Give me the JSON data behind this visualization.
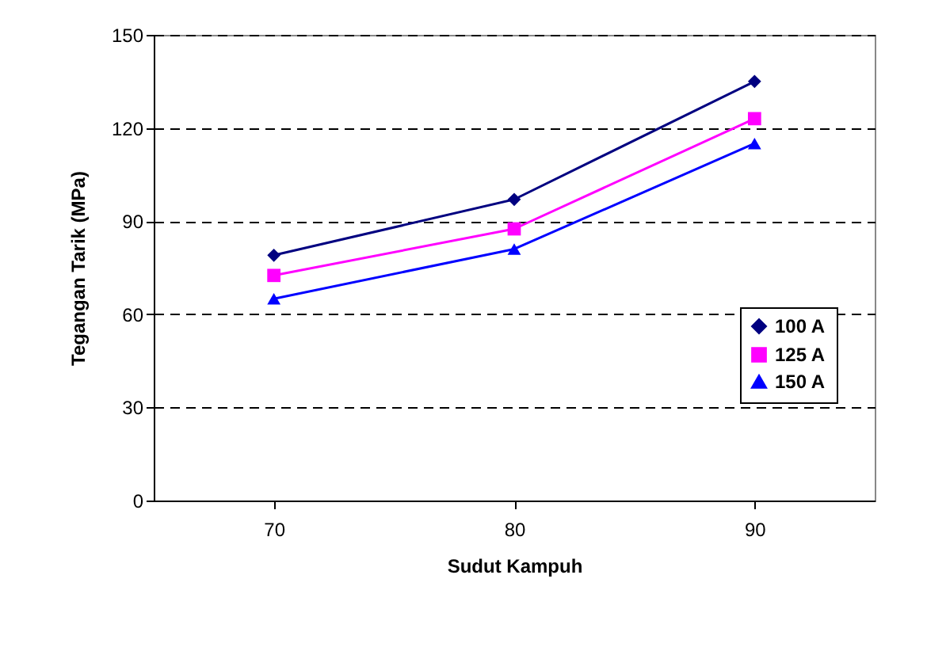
{
  "chart_data": {
    "type": "line",
    "xlabel": "Sudut Kampuh",
    "ylabel": "Tegangan Tarik (MPa)",
    "categories": [
      "70",
      "80",
      "90"
    ],
    "series": [
      {
        "name": "100 A",
        "color": "#000080",
        "marker": "diamond",
        "values": [
          79,
          97,
          135
        ]
      },
      {
        "name": "125 A",
        "color": "#ff00ff",
        "marker": "square",
        "values": [
          72.5,
          87.5,
          123
        ]
      },
      {
        "name": "150 A",
        "color": "#0000ff",
        "marker": "triangle",
        "values": [
          65,
          81,
          115
        ]
      }
    ],
    "ylim": [
      0,
      150
    ],
    "yticks": [
      0,
      30,
      60,
      90,
      120,
      150
    ],
    "grid": "y",
    "legend": "right",
    "line_style": "solid"
  }
}
